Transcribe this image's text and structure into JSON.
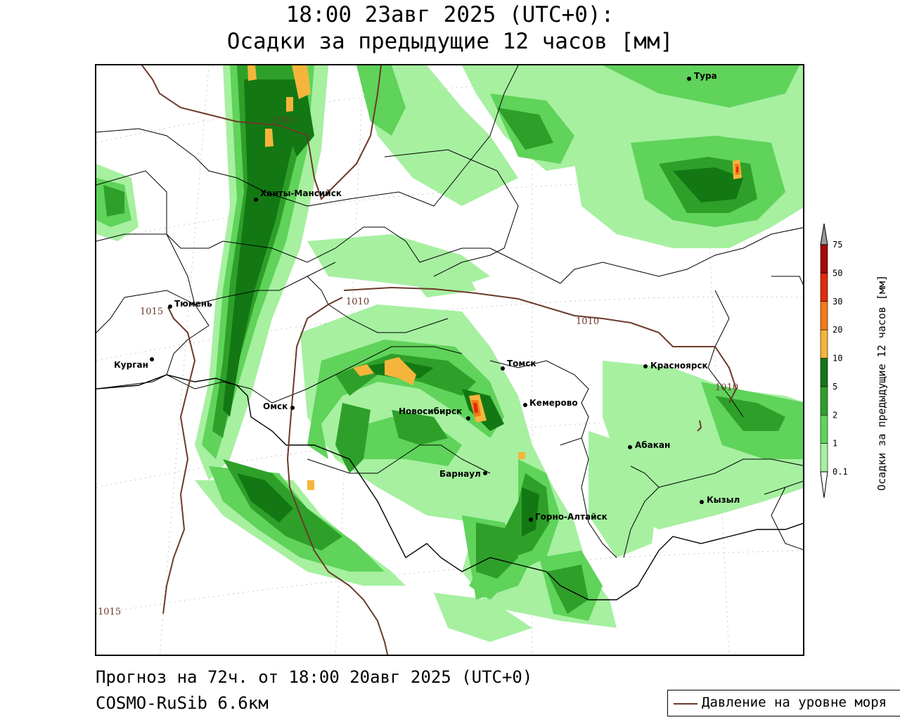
{
  "title": {
    "line1": "18:00 23авг 2025 (UTC+0):",
    "line2": "Осадки за предыдущие 12 часов [мм]"
  },
  "footer": {
    "forecast": "Прогноз на 72ч. от 18:00 20авг 2025 (UTC+0)",
    "model": "COSMO-RuSib 6.6км"
  },
  "pressure_legend": {
    "label": "Давление на уровне моря"
  },
  "legend": {
    "title": "Осадки за предыдущие 12 часов [мм]",
    "levels": [
      {
        "value": "0.1",
        "color": "#ffffff"
      },
      {
        "value": "1",
        "color": "#a6f0a0"
      },
      {
        "value": "2",
        "color": "#5fd35a"
      },
      {
        "value": "5",
        "color": "#2ea02a"
      },
      {
        "value": "10",
        "color": "#137813"
      },
      {
        "value": "20",
        "color": "#f5b53c"
      },
      {
        "value": "30",
        "color": "#f27a18"
      },
      {
        "value": "50",
        "color": "#e02b0b"
      },
      {
        "value": "75",
        "color": "#a50a0a"
      }
    ],
    "overflow_color": "#999999"
  },
  "cities": [
    {
      "name": "Тура"
    },
    {
      "name": "Ханты-Мансийск"
    },
    {
      "name": "Тюмень"
    },
    {
      "name": "Курган"
    },
    {
      "name": "Омск"
    },
    {
      "name": "Новосибирск"
    },
    {
      "name": "Томск"
    },
    {
      "name": "Кемерово"
    },
    {
      "name": "Барнаул"
    },
    {
      "name": "Горно-Алтайск"
    },
    {
      "name": "Красноярск"
    },
    {
      "name": "Абакан"
    },
    {
      "name": "Кызыл"
    }
  ],
  "isobars": [
    {
      "label": "1010"
    },
    {
      "label": "1015"
    },
    {
      "label": "1010"
    },
    {
      "label": "1010"
    },
    {
      "label": "1010"
    },
    {
      "label": "1015"
    }
  ],
  "colors": {
    "isobar": "#6b3a2a",
    "border": "#000000",
    "grid": "#c8c8c8"
  }
}
